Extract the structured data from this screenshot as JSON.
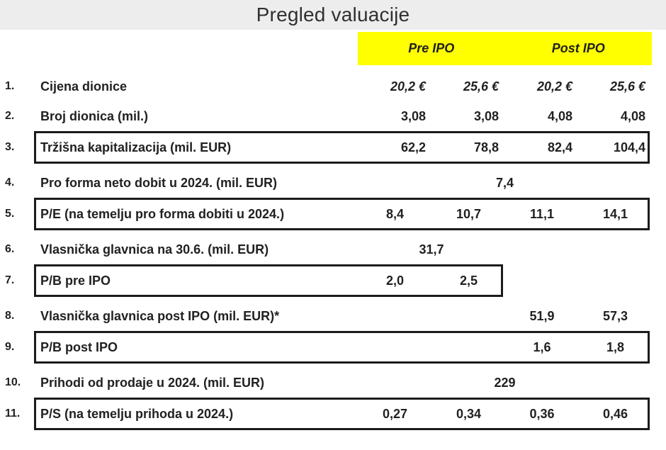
{
  "title": "Pregled valuacije",
  "column_groups": {
    "pre_ipo": "Pre IPO",
    "post_ipo": "Post IPO"
  },
  "colors": {
    "highlight": "#ffff00",
    "title_bar_bg": "#ededed",
    "text": "#212121",
    "box_border": "#1b1b1b"
  },
  "rows": [
    {
      "num": "1.",
      "label": "Cijena dionice",
      "v1": "20,2 €",
      "v2": "25,6 €",
      "v3": "20,2 €",
      "v4": "25,6 €"
    },
    {
      "num": "2.",
      "label": "Broj dionica (mil.)",
      "v1": "3,08",
      "v2": "3,08",
      "v3": "4,08",
      "v4": "4,08"
    },
    {
      "num": "3.",
      "label": "Tržišna kapitalizacija (mil. EUR)",
      "v1": "62,2",
      "v2": "78,8",
      "v3": "82,4",
      "v4": "104,4",
      "boxed": true
    },
    {
      "num": "4.",
      "label": "Pro forma neto dobit u 2024. (mil. EUR)",
      "merged_value": "7,4",
      "merge_span": "all"
    },
    {
      "num": "5.",
      "label": "P/E (na temelju pro forma dobiti u 2024.)",
      "v1": "8,4",
      "v2": "10,7",
      "v3": "11,1",
      "v4": "14,1",
      "boxed": true
    },
    {
      "num": "6.",
      "label": "Vlasnička glavnica na 30.6. (mil. EUR)",
      "merged_value": "31,7",
      "merge_span": "pre_ipo"
    },
    {
      "num": "7.",
      "label": "P/B pre IPO",
      "v1": "2,0",
      "v2": "2,5",
      "v3": "",
      "v4": "",
      "boxed": true,
      "box_extent": "pre_ipo_only"
    },
    {
      "num": "8.",
      "label": "Vlasnička glavnica post IPO (mil. EUR)*",
      "v1": "",
      "v2": "",
      "v3": "51,9",
      "v4": "57,3"
    },
    {
      "num": "9.",
      "label": "P/B post IPO",
      "v1": "",
      "v2": "",
      "v3": "1,6",
      "v4": "1,8",
      "boxed": true
    },
    {
      "num": "10.",
      "label": "Prihodi od prodaje u 2024. (mil. EUR)",
      "merged_value": "229",
      "merge_span": "all"
    },
    {
      "num": "11.",
      "label": "P/S (na temelju prihoda u 2024.)",
      "v1": "0,27",
      "v2": "0,34",
      "v3": "0,36",
      "v4": "0,46",
      "boxed": true
    }
  ]
}
